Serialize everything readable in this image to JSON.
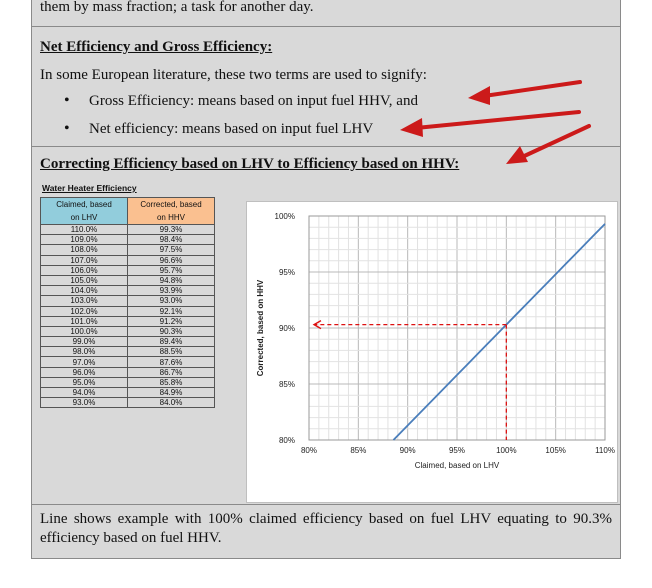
{
  "top_text": "them by mass fraction; a task for another day.",
  "section1": {
    "title": "Net Efficiency and Gross Efficiency:",
    "intro": "In some European literature, these two terms are used to signify:",
    "bullets": [
      "Gross Efficiency: means based on input fuel HHV, and",
      "Net efficiency: means based on input fuel LHV"
    ]
  },
  "section2": {
    "title": "Correcting Efficiency based on LHV to Efficiency based on HHV:"
  },
  "table": {
    "title": "Water Heater Efficiency",
    "headers": [
      [
        "Claimed, based",
        "on LHV"
      ],
      [
        "Corrected, based",
        "on HHV"
      ]
    ],
    "rows": [
      [
        "110.0%",
        "99.3%"
      ],
      [
        "109.0%",
        "98.4%"
      ],
      [
        "108.0%",
        "97.5%"
      ],
      [
        "107.0%",
        "96.6%"
      ],
      [
        "106.0%",
        "95.7%"
      ],
      [
        "105.0%",
        "94.8%"
      ],
      [
        "104.0%",
        "93.9%"
      ],
      [
        "103.0%",
        "93.0%"
      ],
      [
        "102.0%",
        "92.1%"
      ],
      [
        "101.0%",
        "91.2%"
      ],
      [
        "100.0%",
        "90.3%"
      ],
      [
        "99.0%",
        "89.4%"
      ],
      [
        "98.0%",
        "88.5%"
      ],
      [
        "97.0%",
        "87.6%"
      ],
      [
        "96.0%",
        "86.7%"
      ],
      [
        "95.0%",
        "85.8%"
      ],
      [
        "94.0%",
        "84.9%"
      ],
      [
        "93.0%",
        "84.0%"
      ]
    ]
  },
  "chart_data": {
    "type": "line",
    "xlabel": "Claimed, based on LHV",
    "ylabel": "Corrected, based on HHV",
    "xlim": [
      80,
      110
    ],
    "ylim": [
      80,
      100
    ],
    "x_ticks": [
      "80%",
      "85%",
      "90%",
      "95%",
      "100%",
      "105%",
      "110%"
    ],
    "y_ticks": [
      "80%",
      "85%",
      "90%",
      "95%",
      "100%"
    ],
    "x": [
      93,
      94,
      95,
      96,
      97,
      98,
      99,
      100,
      101,
      102,
      103,
      104,
      105,
      106,
      107,
      108,
      109,
      110
    ],
    "y": [
      84.0,
      84.9,
      85.8,
      86.7,
      87.6,
      88.5,
      89.4,
      90.3,
      91.2,
      92.1,
      93.0,
      93.9,
      94.8,
      95.7,
      96.6,
      97.5,
      98.4,
      99.3
    ],
    "line_color": "#4a7ebb",
    "marker_color": "#dd1111",
    "marker_point": [
      100,
      90.3
    ],
    "grid": true
  },
  "footer": "Line shows example with 100% claimed efficiency based on fuel LHV equating to 90.3% efficiency based on fuel HHV.",
  "colors": {
    "arrow": "#cc1a1a",
    "page_bg": "#d9d9d9"
  }
}
